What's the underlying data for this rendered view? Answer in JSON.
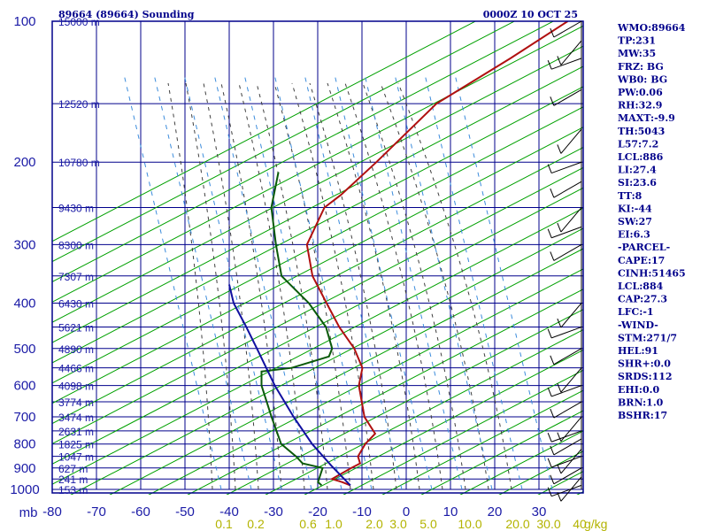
{
  "header": {
    "station_title": "89664 (89664) Sounding",
    "time_label": "0000Z 10 OCT 25"
  },
  "chart_data": {
    "type": "line",
    "subtype": "skew-t log-p thermodynamic diagram",
    "axes": {
      "pressure_unit_label": "mb",
      "pressure_ticks": [
        100,
        200,
        300,
        400,
        500,
        600,
        700,
        800,
        900,
        1000
      ],
      "temperature_ticks": [
        -80,
        -70,
        -60,
        -50,
        -40,
        -30,
        -20,
        -10,
        0,
        10,
        20,
        30
      ],
      "temperature_range": [
        -80,
        40
      ],
      "pressure_range": [
        1050,
        100
      ],
      "mixing_ratio_ticks": [
        "0.1",
        "0.2",
        "0.6",
        "1.0",
        "2.0",
        "3.0",
        "5.0",
        "10.0",
        "20.0",
        "30.0",
        "40"
      ],
      "mixing_ratio_unit": "g/kg",
      "height_ticks": [
        {
          "label": "15000 m",
          "p": 100
        },
        {
          "label": "12520 m",
          "p": 150
        },
        {
          "label": "10780 m",
          "p": 200
        },
        {
          "label": "9430 m",
          "p": 250
        },
        {
          "label": "8300 m",
          "p": 300
        },
        {
          "label": "7307 m",
          "p": 350
        },
        {
          "label": "6430 m",
          "p": 400
        },
        {
          "label": "5621 m",
          "p": 450
        },
        {
          "label": "4890 m",
          "p": 500
        },
        {
          "label": "4466 m",
          "p": 550
        },
        {
          "label": "4098 m",
          "p": 600
        },
        {
          "label": "3774 m",
          "p": 650
        },
        {
          "label": "3474 m",
          "p": 700
        },
        {
          "label": "2631 m",
          "p": 750
        },
        {
          "label": "1825 m",
          "p": 800
        },
        {
          "label": "1047 m",
          "p": 850
        },
        {
          "label": "627 m",
          "p": 900
        },
        {
          "label": "241 m",
          "p": 950
        },
        {
          "label": "153 m",
          "p": 1000
        }
      ]
    },
    "series": [
      {
        "role": "temperature",
        "color": "#b01010",
        "points": [
          {
            "p": 980,
            "t": -13.5
          },
          {
            "p": 965,
            "t": -16
          },
          {
            "p": 950,
            "t": -19
          },
          {
            "p": 900,
            "t": -17
          },
          {
            "p": 880,
            "t": -16
          },
          {
            "p": 850,
            "t": -18
          },
          {
            "p": 800,
            "t": -19
          },
          {
            "p": 760,
            "t": -19
          },
          {
            "p": 700,
            "t": -25
          },
          {
            "p": 600,
            "t": -33
          },
          {
            "p": 550,
            "t": -36
          },
          {
            "p": 500,
            "t": -42
          },
          {
            "p": 450,
            "t": -50
          },
          {
            "p": 400,
            "t": -58
          },
          {
            "p": 350,
            "t": -67
          },
          {
            "p": 300,
            "t": -75
          },
          {
            "p": 250,
            "t": -79
          },
          {
            "p": 235,
            "t": -78
          },
          {
            "p": 200,
            "t": -77
          },
          {
            "p": 150,
            "t": -76
          },
          {
            "p": 120,
            "t": -69
          },
          {
            "p": 100,
            "t": -64
          }
        ]
      },
      {
        "role": "dewpoint",
        "color": "#0a5a0a",
        "points": [
          {
            "p": 980,
            "t": -20
          },
          {
            "p": 965,
            "t": -21.5
          },
          {
            "p": 900,
            "t": -23.5
          },
          {
            "p": 880,
            "t": -29
          },
          {
            "p": 850,
            "t": -32
          },
          {
            "p": 800,
            "t": -38
          },
          {
            "p": 700,
            "t": -46
          },
          {
            "p": 600,
            "t": -55
          },
          {
            "p": 560,
            "t": -58
          },
          {
            "p": 550,
            "t": -52
          },
          {
            "p": 520,
            "t": -46
          },
          {
            "p": 500,
            "t": -47
          },
          {
            "p": 450,
            "t": -53
          },
          {
            "p": 400,
            "t": -62
          },
          {
            "p": 350,
            "t": -74
          },
          {
            "p": 300,
            "t": -82
          },
          {
            "p": 250,
            "t": -91
          },
          {
            "p": 210,
            "t": -97
          }
        ]
      },
      {
        "role": "parcel",
        "color": "#1010a0",
        "points": [
          {
            "p": 980,
            "t": -13.5
          },
          {
            "p": 890,
            "t": -22
          },
          {
            "p": 800,
            "t": -31
          },
          {
            "p": 700,
            "t": -41
          },
          {
            "p": 600,
            "t": -52
          },
          {
            "p": 500,
            "t": -64
          },
          {
            "p": 450,
            "t": -71
          },
          {
            "p": 400,
            "t": -79
          },
          {
            "p": 365,
            "t": -84
          }
        ]
      }
    ],
    "wind_barbs": [
      {
        "p": 100
      },
      {
        "p": 110
      },
      {
        "p": 120
      },
      {
        "p": 140
      },
      {
        "p": 170
      },
      {
        "p": 200
      },
      {
        "p": 220
      },
      {
        "p": 250
      },
      {
        "p": 275
      },
      {
        "p": 300
      },
      {
        "p": 400
      },
      {
        "p": 450
      },
      {
        "p": 500
      },
      {
        "p": 550
      },
      {
        "p": 600
      },
      {
        "p": 650
      },
      {
        "p": 700
      },
      {
        "p": 750
      },
      {
        "p": 780
      },
      {
        "p": 820
      },
      {
        "p": 850
      },
      {
        "p": 900
      },
      {
        "p": 940
      },
      {
        "p": 980
      }
    ]
  },
  "indices": [
    "WMO:89664",
    "TP:231",
    "MW:35",
    "FRZ: BG",
    "WB0: BG",
    "PW:0.06",
    "RH:32.9",
    "MAXT:-9.9",
    "TH:5043",
    "L57:7.2",
    "LCL:886",
    "LI:27.4",
    "SI:23.6",
    "TT:8",
    "KI:-44",
    "SW:27",
    "EI:6.3",
    "-PARCEL-",
    "CAPE:17",
    "CINH:51465",
    "LCL:884",
    "CAP:27.3",
    "LFC:-1",
    "-WIND-",
    "STM:271/7",
    "HEL:91",
    "SHR+:0.0",
    "SRDS:112",
    "EHI:0.0",
    "BRN:1.0",
    "BSHR:17"
  ],
  "colors": {
    "grid": "#00008b",
    "dry_adiabat": "#00a000",
    "moist_adiabat": "#404040",
    "mixing_ratio": "#3c8cdc",
    "temperature": "#b01010",
    "dewpoint": "#0a5a0a",
    "parcel": "#1010a0",
    "text": "#00008b"
  }
}
